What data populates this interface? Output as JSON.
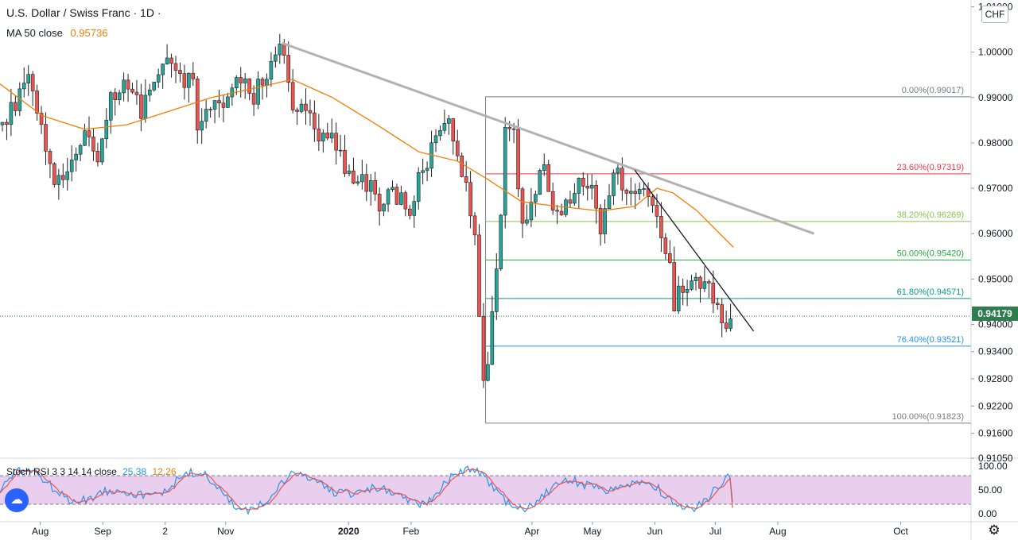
{
  "header": {
    "symbol": "U.S. Dollar / Swiss Franc · 1D ·",
    "ma_label": "MA 50 close",
    "ma_value": "0.95736",
    "currency": "CHF",
    "last_price": "0.94179"
  },
  "oscillator": {
    "label": "Stoch RSI 3 3 14 14 close",
    "k_value": "25.38",
    "d_value": "12.26",
    "ticks": [
      "100.00",
      "50.00",
      "0.00"
    ],
    "bands": [
      80,
      20
    ]
  },
  "colors": {
    "up": "#26a69a",
    "down": "#ef5350",
    "ma": "#f57c00",
    "stoch_k": "#2196f3",
    "stoch_d": "#ef5350",
    "stoch_band": "#e1bee7",
    "trendline": "#b2b2b2"
  },
  "chart_data": {
    "type": "candlestick",
    "symbol": "USDCHF",
    "timeframe": "1D",
    "ylim": [
      0.9105,
      1.0115
    ],
    "y_ticks": [
      "1.01000",
      "1.00000",
      "0.99000",
      "0.98000",
      "0.97000",
      "0.96000",
      "0.95000",
      "0.94000",
      "0.93400",
      "0.92800",
      "0.92200",
      "0.91600",
      "0.91050"
    ],
    "x_ticks": [
      "Aug",
      "Sep",
      "2",
      "Nov",
      "2020",
      "Feb",
      "Apr",
      "May",
      "Jun",
      "Jul",
      "Aug",
      "Oct"
    ],
    "close_path": [
      {
        "date": "2019-07-12",
        "close": 0.984
      },
      {
        "date": "2019-07-26",
        "close": 0.993
      },
      {
        "date": "2019-08-02",
        "close": 0.982
      },
      {
        "date": "2019-08-09",
        "close": 0.97
      },
      {
        "date": "2019-08-16",
        "close": 0.977
      },
      {
        "date": "2019-08-23",
        "close": 0.983
      },
      {
        "date": "2019-08-30",
        "close": 0.977
      },
      {
        "date": "2019-09-06",
        "close": 0.991
      },
      {
        "date": "2019-09-13",
        "close": 0.993
      },
      {
        "date": "2019-09-20",
        "close": 0.987
      },
      {
        "date": "2019-10-01",
        "close": 1.0
      },
      {
        "date": "2019-10-08",
        "close": 0.994
      },
      {
        "date": "2019-10-15",
        "close": 0.995
      },
      {
        "date": "2019-10-18",
        "close": 0.985
      },
      {
        "date": "2019-10-25",
        "close": 0.99
      },
      {
        "date": "2019-11-01",
        "close": 0.988
      },
      {
        "date": "2019-11-07",
        "close": 0.995
      },
      {
        "date": "2019-11-14",
        "close": 0.99
      },
      {
        "date": "2019-11-22",
        "close": 0.996
      },
      {
        "date": "2019-11-29",
        "close": 1.001
      },
      {
        "date": "2019-12-03",
        "close": 0.989
      },
      {
        "date": "2019-12-10",
        "close": 0.987
      },
      {
        "date": "2019-12-17",
        "close": 0.982
      },
      {
        "date": "2019-12-24",
        "close": 0.98
      },
      {
        "date": "2020-01-03",
        "close": 0.971
      },
      {
        "date": "2020-01-10",
        "close": 0.971
      },
      {
        "date": "2020-01-17",
        "close": 0.966
      },
      {
        "date": "2020-01-24",
        "close": 0.969
      },
      {
        "date": "2020-01-31",
        "close": 0.966
      },
      {
        "date": "2020-02-07",
        "close": 0.974
      },
      {
        "date": "2020-02-14",
        "close": 0.98
      },
      {
        "date": "2020-02-20",
        "close": 0.984
      },
      {
        "date": "2020-02-27",
        "close": 0.972
      },
      {
        "date": "2020-03-03",
        "close": 0.963
      },
      {
        "date": "2020-03-06",
        "close": 0.939
      },
      {
        "date": "2020-03-09",
        "close": 0.925
      },
      {
        "date": "2020-03-12",
        "close": 0.941
      },
      {
        "date": "2020-03-16",
        "close": 0.958
      },
      {
        "date": "2020-03-19",
        "close": 0.985
      },
      {
        "date": "2020-03-23",
        "close": 0.983
      },
      {
        "date": "2020-03-27",
        "close": 0.962
      },
      {
        "date": "2020-03-31",
        "close": 0.965
      },
      {
        "date": "2020-04-06",
        "close": 0.978
      },
      {
        "date": "2020-04-10",
        "close": 0.968
      },
      {
        "date": "2020-04-17",
        "close": 0.966
      },
      {
        "date": "2020-04-24",
        "close": 0.973
      },
      {
        "date": "2020-05-01",
        "close": 0.97
      },
      {
        "date": "2020-05-05",
        "close": 0.961
      },
      {
        "date": "2020-05-12",
        "close": 0.973
      },
      {
        "date": "2020-05-19",
        "close": 0.97
      },
      {
        "date": "2020-05-26",
        "close": 0.97
      },
      {
        "date": "2020-05-29",
        "close": 0.966
      },
      {
        "date": "2020-06-03",
        "close": 0.962
      },
      {
        "date": "2020-06-08",
        "close": 0.955
      },
      {
        "date": "2020-06-10",
        "close": 0.944
      },
      {
        "date": "2020-06-12",
        "close": 0.948
      },
      {
        "date": "2020-06-17",
        "close": 0.95
      },
      {
        "date": "2020-06-22",
        "close": 0.948
      },
      {
        "date": "2020-06-25",
        "close": 0.949
      },
      {
        "date": "2020-06-30",
        "close": 0.945
      },
      {
        "date": "2020-07-03",
        "close": 0.943
      },
      {
        "date": "2020-07-08",
        "close": 0.939
      },
      {
        "date": "2020-07-10",
        "close": 0.9418
      }
    ],
    "ma50_path": [
      {
        "date": "2019-07-12",
        "value": 0.993
      },
      {
        "date": "2019-08-02",
        "value": 0.986
      },
      {
        "date": "2019-08-23",
        "value": 0.983
      },
      {
        "date": "2019-09-13",
        "value": 0.984
      },
      {
        "date": "2019-10-04",
        "value": 0.987
      },
      {
        "date": "2019-10-25",
        "value": 0.99
      },
      {
        "date": "2019-11-15",
        "value": 0.992
      },
      {
        "date": "2019-12-04",
        "value": 0.994
      },
      {
        "date": "2019-12-24",
        "value": 0.99
      },
      {
        "date": "2020-01-15",
        "value": 0.984
      },
      {
        "date": "2020-02-05",
        "value": 0.978
      },
      {
        "date": "2020-02-24",
        "value": 0.976
      },
      {
        "date": "2020-03-10",
        "value": 0.972
      },
      {
        "date": "2020-03-27",
        "value": 0.967
      },
      {
        "date": "2020-04-14",
        "value": 0.966
      },
      {
        "date": "2020-05-05",
        "value": 0.965
      },
      {
        "date": "2020-05-22",
        "value": 0.966
      },
      {
        "date": "2020-06-02",
        "value": 0.97
      },
      {
        "date": "2020-06-10",
        "value": 0.969
      },
      {
        "date": "2020-06-22",
        "value": 0.965
      },
      {
        "date": "2020-07-01",
        "value": 0.961
      },
      {
        "date": "2020-07-10",
        "value": 0.957
      }
    ],
    "trendlines": [
      {
        "name": "upper",
        "from": {
          "date": "2019-11-29",
          "value": 1.002
        },
        "to": {
          "date": "2020-08-19",
          "value": 0.96
        }
      },
      {
        "name": "lower",
        "from": {
          "date": "2020-05-22",
          "value": 0.974
        },
        "to": {
          "date": "2020-07-20",
          "value": 0.9385
        }
      }
    ],
    "fibonacci": {
      "start_date": "2020-03-09",
      "levels": [
        {
          "label": "0.00%(0.99017)",
          "value": 0.99017,
          "color": "#787b86"
        },
        {
          "label": "23.60%(0.97319)",
          "value": 0.97319,
          "color": "#f23645"
        },
        {
          "label": "38.20%(0.96269)",
          "value": 0.96269,
          "color": "#8bc34a"
        },
        {
          "label": "50.00%(0.95420)",
          "value": 0.9542,
          "color": "#22ab40"
        },
        {
          "label": "61.80%(0.94571)",
          "value": 0.94571,
          "color": "#089981"
        },
        {
          "label": "76.40%(0.93521)",
          "value": 0.93521,
          "color": "#2196f3"
        },
        {
          "label": "100.00%(0.91823)",
          "value": 0.91823,
          "color": "#787b86"
        }
      ]
    },
    "stoch_rsi": {
      "last_k": 25.38,
      "last_d": 12.26,
      "range": [
        0,
        100
      ],
      "bands": [
        80,
        20
      ]
    }
  }
}
